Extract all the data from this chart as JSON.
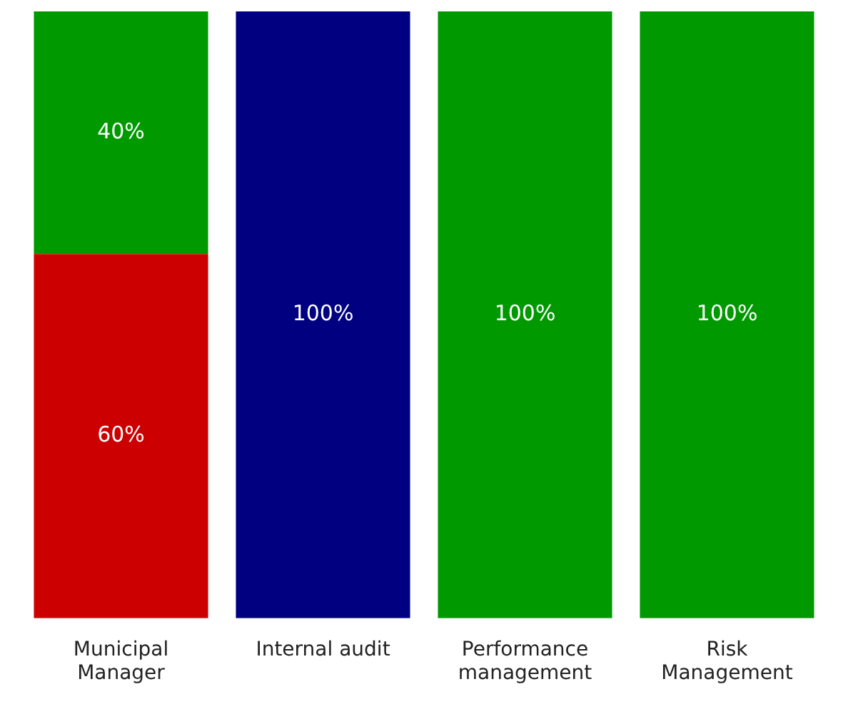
{
  "chart_data": {
    "type": "bar",
    "stacked": true,
    "categories": [
      "Municipal Manager",
      "Internal audit",
      "Performance management",
      "Risk Management"
    ],
    "series": [
      {
        "color": "#cc0000",
        "values": [
          60,
          null,
          null,
          null
        ],
        "value_labels": [
          "60%",
          null,
          null,
          null
        ]
      },
      {
        "color": "#009900",
        "values": [
          40,
          null,
          100,
          100
        ],
        "value_labels": [
          "40%",
          null,
          "100%",
          "100%"
        ]
      },
      {
        "color": "#000080",
        "values": [
          null,
          100,
          null,
          null
        ],
        "value_labels": [
          null,
          "100%",
          null,
          null
        ]
      }
    ],
    "grid": false,
    "legend": false
  }
}
